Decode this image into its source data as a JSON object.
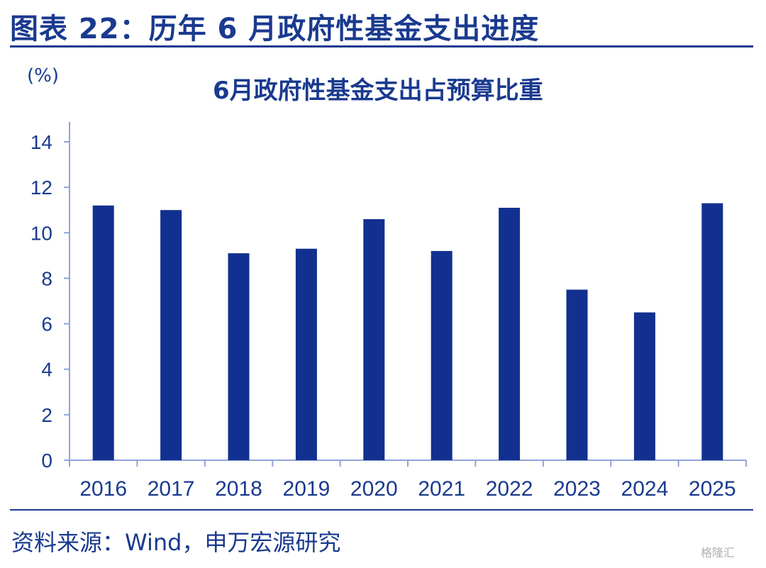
{
  "figure_title": "图表 22：历年 6 月政府性基金支出进度",
  "unit_label": "(%)",
  "source": "资料来源：Wind，申万宏源研究",
  "watermark": "格隆汇",
  "colors": {
    "bar": "#12308f",
    "axis": "#8fa4d8",
    "text": "#1a3a8f"
  },
  "chart_data": {
    "type": "bar",
    "title": "6月政府性基金支出占预算比重",
    "xlabel": "",
    "ylabel": "(%)",
    "categories": [
      "2016",
      "2017",
      "2018",
      "2019",
      "2020",
      "2021",
      "2022",
      "2023",
      "2024",
      "2025"
    ],
    "values": [
      11.2,
      11.0,
      9.1,
      9.3,
      10.6,
      9.2,
      11.1,
      7.5,
      6.5,
      11.3
    ],
    "ylim": [
      0,
      14
    ],
    "yticks": [
      0,
      2,
      4,
      6,
      8,
      10,
      12,
      14
    ],
    "grid": false,
    "legend": "none"
  }
}
